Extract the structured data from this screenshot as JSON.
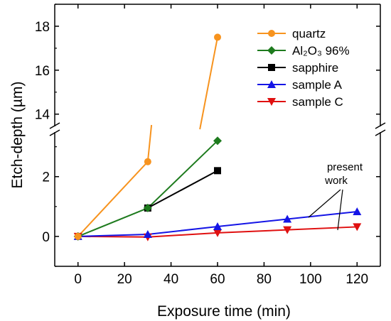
{
  "chart_data": {
    "type": "line",
    "xlabel": "Exposure time (min)",
    "ylabel": "Etch-depth (µm)",
    "xlim": [
      -10,
      130
    ],
    "ylim": [
      -1,
      19
    ],
    "y_axis_break": {
      "from": 3.3,
      "to": 13.7
    },
    "grid": false,
    "legend_position": "top-right",
    "x_ticks": [
      0,
      20,
      40,
      60,
      80,
      100,
      120
    ],
    "y_ticks": [
      0,
      2,
      14,
      16,
      18
    ],
    "annotation": "present\nwork",
    "series": [
      {
        "name": "quartz",
        "marker": "circle",
        "color": "#f7931e",
        "x": [
          0,
          30,
          60
        ],
        "y": [
          0,
          2.5,
          17.5
        ]
      },
      {
        "name": "Al₂O₃ 96%",
        "marker": "diamond",
        "color": "#1e7b1e",
        "x": [
          0,
          30,
          60
        ],
        "y": [
          0,
          0.95,
          3.2
        ]
      },
      {
        "name": "sapphire",
        "marker": "square",
        "color": "#000000",
        "x": [
          30,
          60
        ],
        "y": [
          0.95,
          2.2
        ]
      },
      {
        "name": "sample A",
        "marker": "triangle-up",
        "color": "#1515e6",
        "x": [
          0,
          30,
          60,
          90,
          120
        ],
        "y": [
          0,
          0.07,
          0.33,
          0.58,
          0.83
        ]
      },
      {
        "name": "sample C",
        "marker": "triangle-down",
        "color": "#e01010",
        "x": [
          0,
          30,
          60,
          90,
          120
        ],
        "y": [
          0,
          -0.02,
          0.12,
          0.22,
          0.32
        ]
      }
    ]
  }
}
